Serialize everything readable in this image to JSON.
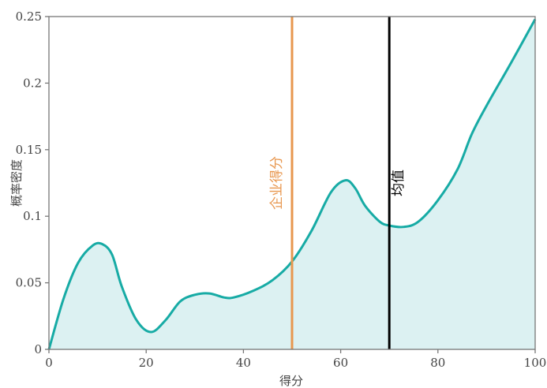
{
  "chart_data": {
    "type": "area",
    "xlabel": "得分",
    "ylabel": "概率密度",
    "xlim": [
      0,
      100
    ],
    "ylim": [
      0,
      0.25
    ],
    "x_ticks": [
      0,
      20,
      40,
      60,
      80,
      100
    ],
    "y_ticks": [
      0,
      0.05,
      0.1,
      0.15,
      0.2,
      0.25
    ],
    "x_tick_labels": [
      "0",
      "20",
      "40",
      "60",
      "80",
      "100"
    ],
    "y_tick_labels": [
      "0",
      "0.05",
      "0.1",
      "0.15",
      "0.2",
      "0.25"
    ],
    "grid": false,
    "series": [
      {
        "x": [
          0,
          3,
          6,
          9,
          11,
          13,
          15,
          18,
          21,
          24,
          27,
          30,
          33,
          36,
          38,
          42,
          46,
          50,
          54,
          58,
          61,
          63,
          65,
          68,
          70,
          73,
          76,
          80,
          84,
          87,
          90,
          95,
          100
        ],
        "y": [
          0.0,
          0.038,
          0.065,
          0.078,
          0.079,
          0.071,
          0.047,
          0.022,
          0.013,
          0.022,
          0.036,
          0.041,
          0.042,
          0.039,
          0.039,
          0.044,
          0.052,
          0.066,
          0.089,
          0.118,
          0.127,
          0.121,
          0.108,
          0.096,
          0.093,
          0.092,
          0.096,
          0.112,
          0.135,
          0.162,
          0.183,
          0.215,
          0.248
        ],
        "line_color": "#17aba5",
        "fill_color": "#dcf1f2"
      }
    ],
    "annotations": [
      {
        "x": 50,
        "label": "企业得分",
        "color": "#e8974f"
      },
      {
        "x": 70,
        "label": "均值",
        "color": "#000000"
      }
    ]
  }
}
